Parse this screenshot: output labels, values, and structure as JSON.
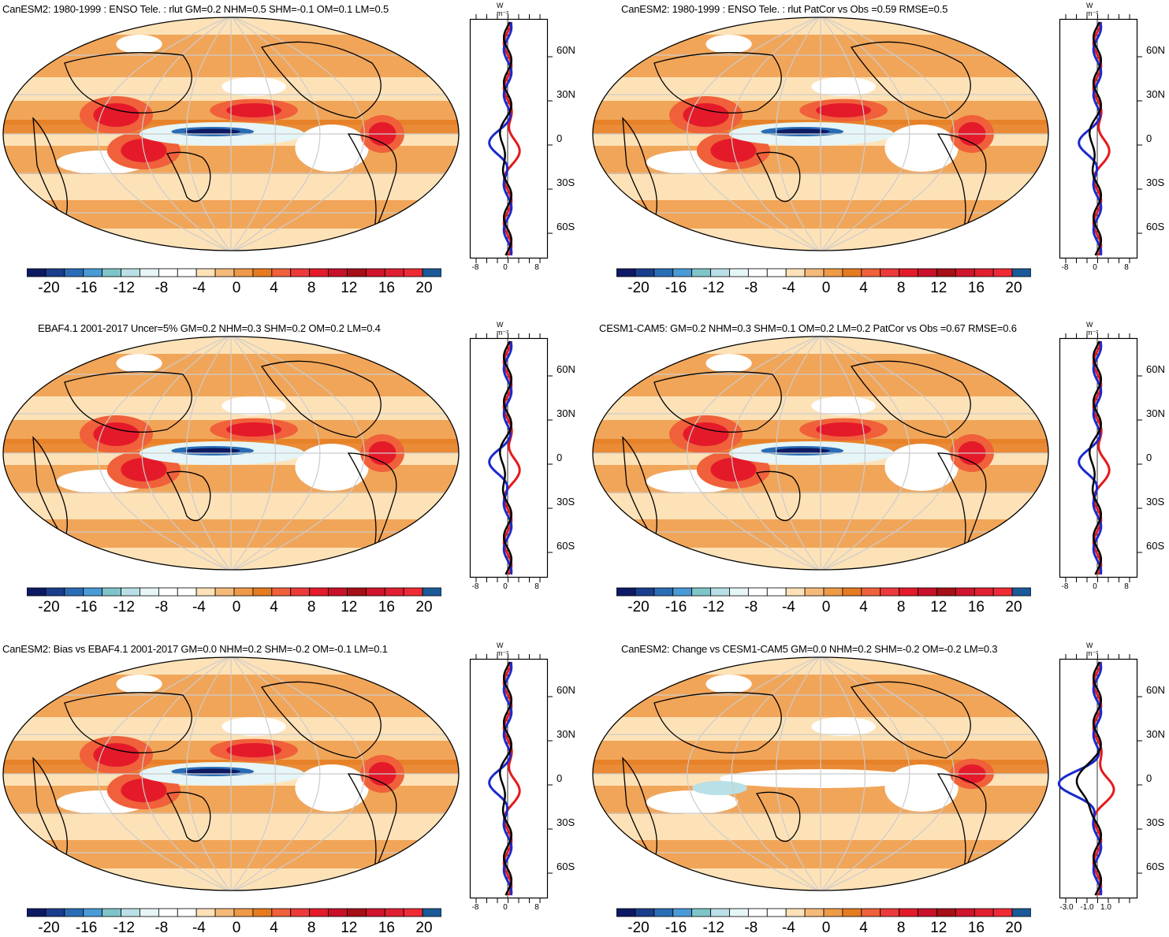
{
  "colorbar": {
    "colors": [
      "#0d1a63",
      "#1a3d8c",
      "#2a6db5",
      "#4a9ad6",
      "#7fc4c8",
      "#b8e0e6",
      "#e6f5f7",
      "#ffffff",
      "#ffffff",
      "#fde2b8",
      "#f5b97a",
      "#ee9a48",
      "#e57b20",
      "#f0603a",
      "#ec3a3a",
      "#e41a2a",
      "#c8102a",
      "#a50f15",
      "#d0142c",
      "#e02030",
      "#ee2a36",
      "#1a5a9a"
    ],
    "labels": [
      "-20",
      "-16",
      "-12",
      "-8",
      "-4",
      "0",
      "4",
      "8",
      "12",
      "16",
      "20"
    ]
  },
  "zonal": {
    "unit": "W m⁻²",
    "lat_labels": [
      "60N",
      "30N",
      "0",
      "30S",
      "60S"
    ],
    "x_labels_default": [
      "-8",
      "0",
      "8"
    ],
    "x_labels_last": [
      "-3.0",
      "-1.0",
      "1.0"
    ]
  },
  "panels": [
    {
      "id": "p1",
      "title": "CanESM2: 1980-1999 : ENSO Tele. : rlut GM=0.2 NHM=0.5 SHM=-0.1 OM=0.1 LM=0.5"
    },
    {
      "id": "p2",
      "title": "CanESM2: 1980-1999 : ENSO Tele. : rlut PatCor vs Obs =0.59 RMSE=0.5"
    },
    {
      "id": "p3",
      "title": "EBAF4.1 2001-2017 Uncer=5% GM=0.2 NHM=0.3 SHM=0.2 OM=0.2 LM=0.4"
    },
    {
      "id": "p4",
      "title": "CESM1-CAM5: GM=0.2 NHM=0.3 SHM=0.1 OM=0.2 LM=0.2 PatCor vs Obs =0.67 RMSE=0.6"
    },
    {
      "id": "p5",
      "title": "CanESM2: Bias vs EBAF4.1 2001-2017 GM=0.0 NHM=0.2 SHM=-0.2 OM=-0.1 LM=0.1"
    },
    {
      "id": "p6",
      "title": "CanESM2: Change vs CESM1-CAM5 GM=0.0 NHM=0.2 SHM=-0.2 OM=-0.2 LM=0.3"
    }
  ]
}
